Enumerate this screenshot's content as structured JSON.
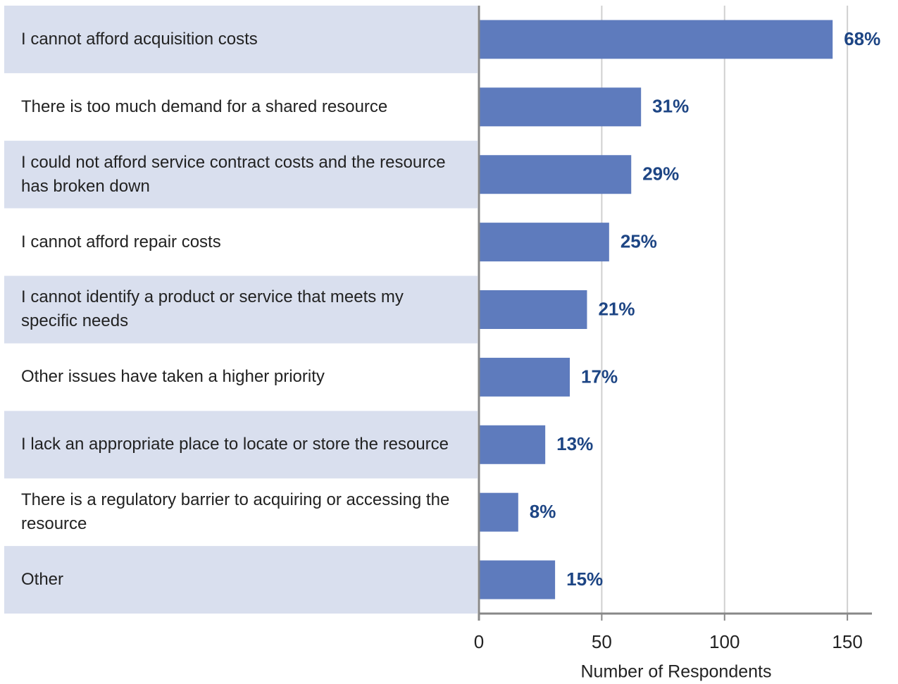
{
  "chart_data": {
    "type": "bar",
    "orientation": "horizontal",
    "categories": [
      "I cannot afford acquisition costs",
      "There is too much demand for a shared resource",
      "I could not afford service contract costs and the resource has broken down",
      "I cannot afford repair costs",
      "I cannot identify a product or service that meets my specific needs",
      "Other issues have taken a higher priority",
      "I lack an appropriate place to locate or store the resource",
      "There is a regulatory barrier to acquiring or accessing the resource",
      "Other"
    ],
    "values": [
      144,
      66,
      62,
      53,
      44,
      37,
      27,
      16,
      31
    ],
    "value_labels": [
      "68%",
      "31%",
      "29%",
      "25%",
      "21%",
      "17%",
      "13%",
      "8%",
      "15%"
    ],
    "color": "#5e7bbd",
    "xlabel": "Number of Respondents",
    "xlim": [
      0,
      160
    ],
    "xticks": [
      0,
      50,
      100,
      150
    ],
    "grid": true
  }
}
